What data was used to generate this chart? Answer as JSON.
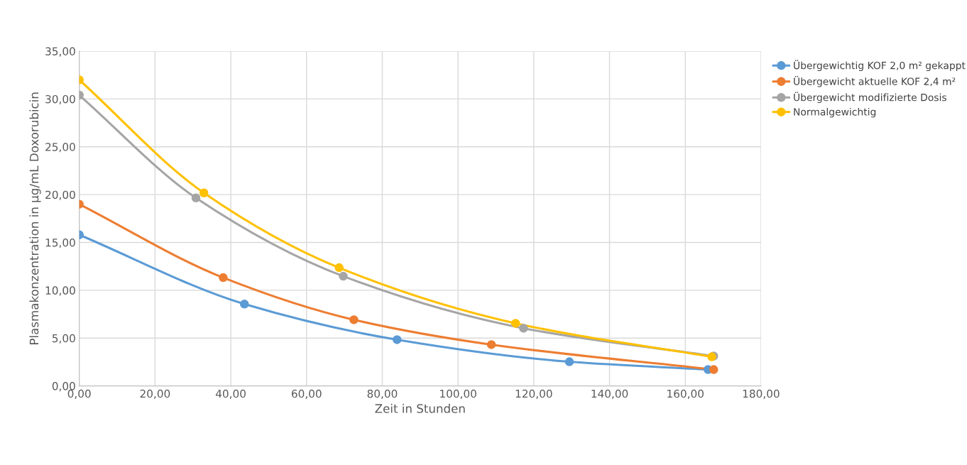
{
  "chart_data": {
    "type": "line",
    "xlabel": "Zeit in Stunden",
    "ylabel": "Plasmakonzentration in µg/mL Doxorubicin",
    "xlim": [
      0,
      180
    ],
    "ylim": [
      0,
      35
    ],
    "xticks": [
      {
        "value": 0,
        "label": "0,00"
      },
      {
        "value": 20,
        "label": "20,00"
      },
      {
        "value": 40,
        "label": "40,00"
      },
      {
        "value": 60,
        "label": "60,00"
      },
      {
        "value": 80,
        "label": "80,00"
      },
      {
        "value": 100,
        "label": "100,00"
      },
      {
        "value": 120,
        "label": "120,00"
      },
      {
        "value": 140,
        "label": "140,00"
      },
      {
        "value": 160,
        "label": "160,00"
      },
      {
        "value": 180,
        "label": "180,00"
      }
    ],
    "yticks": [
      {
        "value": 0,
        "label": "0,00"
      },
      {
        "value": 5,
        "label": "5,00"
      },
      {
        "value": 10,
        "label": "10,00"
      },
      {
        "value": 15,
        "label": "15,00"
      },
      {
        "value": 20,
        "label": "20,00"
      },
      {
        "value": 25,
        "label": "25,00"
      },
      {
        "value": 30,
        "label": "30,00"
      },
      {
        "value": 35,
        "label": "35,00"
      }
    ],
    "grid": true,
    "legend": "right",
    "marker": "circle",
    "line_style": "solid",
    "series": [
      {
        "name": "Übergewichtig KOF 2,0 m² gekappt",
        "color": "#5b9bd5",
        "x": [
          0,
          43.6,
          83.9,
          129.4,
          166.0
        ],
        "values": [
          15.8,
          8.56,
          4.84,
          2.53,
          1.71
        ]
      },
      {
        "name": "Übergewicht aktuelle KOF 2,4 m²",
        "color": "#ed7d31",
        "x": [
          0,
          38.0,
          72.5,
          108.8,
          167.5
        ],
        "values": [
          19.0,
          11.32,
          6.92,
          4.32,
          1.71
        ]
      },
      {
        "name": "Übergewicht modifizierte Dosis",
        "color": "#a5a5a5",
        "x": [
          0,
          30.8,
          69.7,
          117.3,
          167.5
        ],
        "values": [
          30.4,
          19.66,
          11.47,
          6.03,
          3.13
        ]
      },
      {
        "name": "Normalgewichtig",
        "color": "#ffc000",
        "x": [
          0,
          32.9,
          68.6,
          115.2,
          167.0
        ],
        "values": [
          32.0,
          20.18,
          12.36,
          6.55,
          3.05
        ]
      }
    ]
  }
}
